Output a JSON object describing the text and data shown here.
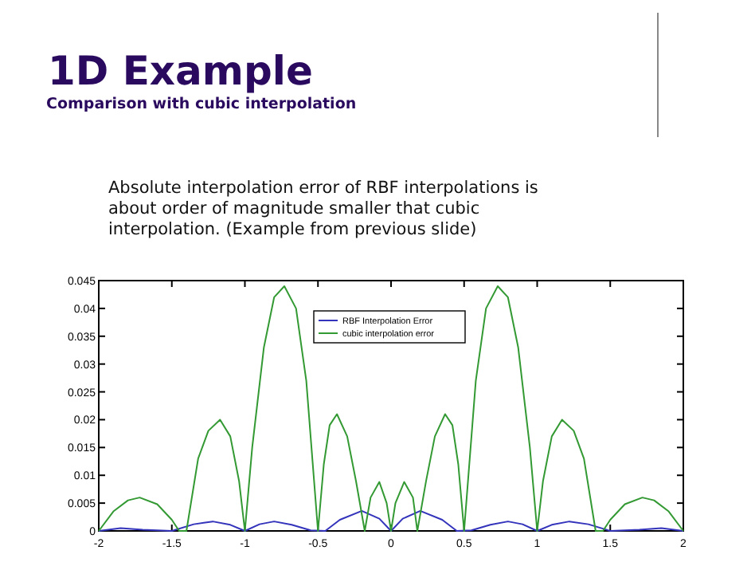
{
  "chart_data": {
    "type": "line",
    "title": "1D Example",
    "subtitle": "Comparison with cubic interpolation",
    "annotations": [
      "Absolute interpolation error of RBF interpolations is about order of magnitude smaller that cubic interpolation. (Example from previous slide)"
    ],
    "xlim": [
      -2,
      2
    ],
    "xticks": [
      -2,
      -1.5,
      -1,
      -0.5,
      0,
      0.5,
      1,
      1.5,
      2
    ],
    "ylim": [
      0,
      0.045
    ],
    "yticks": [
      0,
      0.005,
      0.01,
      0.015,
      0.02,
      0.025,
      0.03,
      0.035,
      0.04,
      0.045
    ],
    "grid": false,
    "legend": "top",
    "marker": "none",
    "line_style": "solid",
    "series": [
      {
        "name": "RBF Interpolation Error",
        "color": "#3333bb",
        "x": [
          -2,
          -1.85,
          -1.7,
          -1.5,
          -1.35,
          -1.22,
          -1.1,
          -1,
          -0.9,
          -0.8,
          -0.68,
          -0.55,
          -0.45,
          -0.35,
          -0.2,
          -0.08,
          0,
          0.08,
          0.2,
          0.35,
          0.45,
          0.55,
          0.68,
          0.8,
          0.9,
          1,
          1.1,
          1.22,
          1.35,
          1.5,
          1.7,
          1.85,
          2
        ],
        "values": [
          0,
          0.0005,
          0.0002,
          0,
          0.0012,
          0.0017,
          0.0011,
          0,
          0.0012,
          0.0017,
          0.0011,
          0.0001,
          0,
          0.002,
          0.0036,
          0.0022,
          0,
          0.0022,
          0.0036,
          0.002,
          0,
          0.0001,
          0.0011,
          0.0017,
          0.0012,
          0,
          0.0011,
          0.0017,
          0.0012,
          0,
          0.0002,
          0.0005,
          0
        ]
      },
      {
        "name": "cubic interpolation error",
        "color": "#339933",
        "x": [
          -2,
          -1.9,
          -1.8,
          -1.72,
          -1.6,
          -1.5,
          -1.45,
          -1.4,
          -1.32,
          -1.25,
          -1.17,
          -1.1,
          -1.04,
          -1,
          -0.95,
          -0.87,
          -0.8,
          -0.73,
          -0.65,
          -0.58,
          -0.5,
          -0.46,
          -0.42,
          -0.37,
          -0.3,
          -0.24,
          -0.18,
          -0.14,
          -0.08,
          -0.03,
          0,
          0.03,
          0.09,
          0.15,
          0.18,
          0.24,
          0.3,
          0.37,
          0.42,
          0.46,
          0.5,
          0.58,
          0.65,
          0.73,
          0.8,
          0.87,
          0.95,
          1,
          1.04,
          1.1,
          1.17,
          1.25,
          1.32,
          1.4,
          1.45,
          1.5,
          1.6,
          1.72,
          1.8,
          1.9,
          2
        ],
        "values": [
          0,
          0.0035,
          0.0055,
          0.006,
          0.0048,
          0.002,
          0,
          0,
          0.013,
          0.018,
          0.02,
          0.017,
          0.009,
          0,
          0.015,
          0.033,
          0.042,
          0.044,
          0.04,
          0.027,
          0,
          0.012,
          0.019,
          0.021,
          0.017,
          0.009,
          0,
          0.006,
          0.0088,
          0.005,
          0,
          0.005,
          0.0088,
          0.006,
          0,
          0.009,
          0.017,
          0.021,
          0.019,
          0.012,
          0,
          0.027,
          0.04,
          0.044,
          0.042,
          0.033,
          0.015,
          0,
          0.009,
          0.017,
          0.02,
          0.018,
          0.013,
          0,
          0,
          0.002,
          0.0048,
          0.006,
          0.0055,
          0.0035,
          0
        ]
      }
    ]
  }
}
